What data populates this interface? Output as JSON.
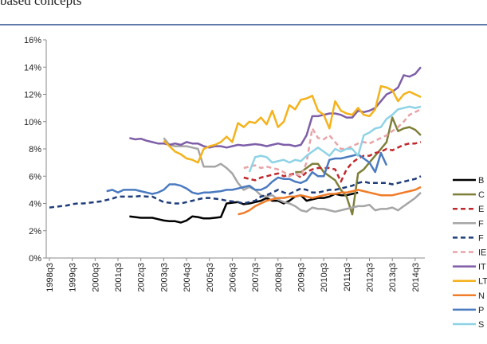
{
  "caption": "based concepts",
  "chart_data": {
    "type": "line",
    "categories": [
      "1998q3",
      null,
      null,
      null,
      "1999q3",
      null,
      null,
      null,
      "2000q3",
      null,
      null,
      null,
      "2001q3",
      null,
      null,
      null,
      "2002q3",
      null,
      null,
      null,
      "2003q3",
      null,
      null,
      null,
      "2004q3",
      null,
      null,
      null,
      "2005q3",
      null,
      null,
      null,
      "2006q3",
      null,
      null,
      null,
      "2007q3",
      null,
      null,
      null,
      "2008q3",
      null,
      null,
      null,
      "2009q3",
      null,
      null,
      null,
      "2010q3",
      null,
      null,
      null,
      "2011q3",
      null,
      null,
      null,
      "2012q3",
      null,
      null,
      null,
      "2013q3",
      null,
      null,
      null,
      "2014q3",
      null
    ],
    "ylim": [
      0,
      16
    ],
    "yticks": [
      {
        "value": 0,
        "label": "0%"
      },
      {
        "value": 2,
        "label": "2%"
      },
      {
        "value": 4,
        "label": "4%"
      },
      {
        "value": 6,
        "label": "6%"
      },
      {
        "value": 8,
        "label": "8%"
      },
      {
        "value": 10,
        "label": "10%"
      },
      {
        "value": 12,
        "label": "12%"
      },
      {
        "value": 14,
        "label": "14%"
      },
      {
        "value": 16,
        "label": "16%"
      }
    ],
    "legend": "right",
    "series": [
      {
        "name": "B",
        "color": "#000000",
        "dash": false,
        "values": [
          null,
          null,
          null,
          null,
          null,
          null,
          null,
          null,
          null,
          null,
          null,
          null,
          null,
          null,
          3.05,
          3.0,
          2.95,
          2.95,
          2.95,
          2.85,
          2.75,
          2.7,
          2.7,
          2.6,
          2.75,
          3.05,
          3.0,
          2.9,
          2.9,
          2.95,
          3.0,
          4.0,
          4.05,
          4.1,
          3.95,
          4.0,
          4.1,
          4.2,
          4.4,
          4.2,
          4.2,
          4.0,
          4.2,
          4.5,
          4.6,
          4.2,
          4.3,
          4.4,
          4.4,
          4.5,
          4.7,
          4.6,
          4.6,
          4.7,
          4.8,
          null,
          null,
          null,
          null,
          null,
          null,
          null,
          null,
          null,
          null,
          null
        ]
      },
      {
        "name": "C",
        "color": "#7f7f3a",
        "dash": false,
        "values": [
          null,
          null,
          null,
          null,
          null,
          null,
          null,
          null,
          null,
          null,
          null,
          null,
          null,
          null,
          null,
          null,
          null,
          null,
          null,
          null,
          null,
          null,
          null,
          null,
          null,
          null,
          null,
          null,
          null,
          null,
          null,
          null,
          null,
          null,
          null,
          null,
          null,
          null,
          null,
          null,
          null,
          null,
          null,
          6.3,
          6.3,
          6.6,
          6.9,
          6.9,
          6.3,
          6.0,
          5.7,
          5.0,
          4.5,
          3.2,
          6.2,
          6.5,
          7.0,
          7.5,
          8.0,
          8.5,
          10.3,
          9.3,
          9.5,
          9.6,
          9.4,
          9.0
        ]
      },
      {
        "name": "E",
        "color": "#c0282d",
        "dash": true,
        "values": [
          null,
          null,
          null,
          null,
          null,
          null,
          null,
          null,
          null,
          null,
          null,
          null,
          null,
          null,
          null,
          null,
          null,
          null,
          null,
          null,
          null,
          null,
          null,
          null,
          null,
          null,
          null,
          null,
          null,
          null,
          null,
          null,
          null,
          null,
          5.9,
          5.8,
          5.7,
          5.9,
          6.0,
          6.1,
          6.2,
          6.0,
          6.1,
          6.2,
          5.9,
          6.3,
          6.5,
          6.6,
          6.6,
          6.6,
          6.5,
          5.6,
          6.5,
          7.0,
          7.3,
          7.5,
          7.5,
          7.7,
          7.8,
          8.0,
          7.9,
          8.1,
          8.3,
          8.4,
          8.4,
          8.5
        ]
      },
      {
        "name": "F",
        "color": "#a6a6a6",
        "dash": false,
        "values": [
          null,
          null,
          null,
          null,
          null,
          null,
          null,
          null,
          null,
          null,
          null,
          null,
          null,
          null,
          null,
          null,
          null,
          null,
          null,
          null,
          8.8,
          8.3,
          8.2,
          8.2,
          8.2,
          8.1,
          8.0,
          6.7,
          6.7,
          6.7,
          6.9,
          6.6,
          6.2,
          5.5,
          5.0,
          5.2,
          5.0,
          4.6,
          4.5,
          4.6,
          4.3,
          4.1,
          4.0,
          3.8,
          3.5,
          3.4,
          3.7,
          3.6,
          3.6,
          3.5,
          3.4,
          3.5,
          3.6,
          3.7,
          3.8,
          3.8,
          3.9,
          3.5,
          3.6,
          3.6,
          3.7,
          3.5,
          3.8,
          4.1,
          4.4,
          4.8
        ]
      },
      {
        "name": "F",
        "color": "#1f3d7a",
        "dash": true,
        "values": [
          3.7,
          3.75,
          3.8,
          3.85,
          3.95,
          4.0,
          4.0,
          4.05,
          4.1,
          4.15,
          4.25,
          4.35,
          4.5,
          4.5,
          4.5,
          4.5,
          4.55,
          4.5,
          4.5,
          4.3,
          4.1,
          4.05,
          4.0,
          4.0,
          4.1,
          4.2,
          4.3,
          4.4,
          4.4,
          4.35,
          4.3,
          4.2,
          4.15,
          4.1,
          4.0,
          4.1,
          4.2,
          4.5,
          4.6,
          4.8,
          5.0,
          4.8,
          4.7,
          4.9,
          5.1,
          5.0,
          4.8,
          4.8,
          4.9,
          5.0,
          5.0,
          5.1,
          5.2,
          5.3,
          5.5,
          5.6,
          5.5,
          5.5,
          5.5,
          5.5,
          5.4,
          5.5,
          5.6,
          5.7,
          5.8,
          6.0
        ]
      },
      {
        "name": "IE",
        "color": "#e8a3a6",
        "dash": true,
        "values": [
          null,
          null,
          null,
          null,
          null,
          null,
          null,
          null,
          null,
          null,
          null,
          null,
          null,
          null,
          null,
          null,
          null,
          null,
          null,
          null,
          null,
          null,
          null,
          null,
          null,
          null,
          null,
          null,
          null,
          null,
          null,
          null,
          null,
          null,
          6.6,
          6.7,
          6.8,
          6.6,
          6.7,
          6.6,
          6.5,
          6.3,
          6.0,
          6.2,
          6.0,
          7.0,
          9.5,
          8.8,
          8.7,
          9.0,
          8.5,
          8.0,
          8.0,
          8.2,
          8.4,
          8.5,
          8.4,
          8.6,
          8.8,
          9.0,
          9.3,
          9.6,
          10.0,
          10.5,
          10.7,
          10.9
        ]
      },
      {
        "name": "IT",
        "color": "#7e5fa8",
        "dash": false,
        "values": [
          null,
          null,
          null,
          null,
          null,
          null,
          null,
          null,
          null,
          null,
          null,
          null,
          null,
          null,
          8.8,
          8.7,
          8.75,
          8.6,
          8.5,
          8.4,
          8.4,
          8.3,
          8.4,
          8.3,
          8.5,
          8.4,
          8.4,
          8.2,
          8.1,
          8.2,
          8.2,
          8.1,
          8.2,
          8.3,
          8.25,
          8.3,
          8.35,
          8.3,
          8.2,
          8.3,
          8.4,
          8.3,
          8.3,
          8.2,
          8.3,
          9.0,
          10.4,
          10.4,
          10.5,
          10.6,
          10.6,
          10.5,
          10.3,
          10.3,
          10.8,
          10.7,
          10.8,
          11.0,
          11.5,
          12.0,
          12.2,
          12.5,
          13.4,
          13.3,
          13.5,
          14.0
        ]
      },
      {
        "name": "LT",
        "color": "#f5b21a",
        "dash": false,
        "values": [
          null,
          null,
          null,
          null,
          null,
          null,
          null,
          null,
          null,
          null,
          null,
          null,
          null,
          null,
          null,
          null,
          null,
          null,
          null,
          null,
          8.6,
          8.2,
          7.8,
          7.6,
          7.3,
          7.2,
          7.0,
          8.0,
          8.2,
          8.3,
          8.5,
          8.9,
          8.5,
          9.9,
          9.6,
          10.0,
          9.9,
          10.3,
          9.8,
          10.8,
          9.6,
          10.0,
          11.2,
          10.9,
          11.6,
          11.7,
          11.9,
          10.8,
          10.5,
          9.5,
          11.5,
          10.8,
          10.6,
          10.5,
          11.0,
          10.5,
          10.4,
          10.9,
          12.6,
          12.5,
          12.3,
          11.5,
          12.0,
          12.2,
          12.0,
          11.8
        ]
      },
      {
        "name": "N",
        "color": "#f07d2a",
        "dash": false,
        "values": [
          null,
          null,
          null,
          null,
          null,
          null,
          null,
          null,
          null,
          null,
          null,
          null,
          null,
          null,
          null,
          null,
          null,
          null,
          null,
          null,
          null,
          null,
          null,
          null,
          null,
          null,
          null,
          null,
          null,
          null,
          null,
          null,
          null,
          3.2,
          3.3,
          3.5,
          3.8,
          4.0,
          4.2,
          4.3,
          4.4,
          4.4,
          4.5,
          4.5,
          4.6,
          4.5,
          4.4,
          4.5,
          4.6,
          4.7,
          4.7,
          4.8,
          4.8,
          4.9,
          5.0,
          4.9,
          4.8,
          4.7,
          4.6,
          4.6,
          4.6,
          4.7,
          4.8,
          4.9,
          5.0,
          5.2
        ]
      },
      {
        "name": "P",
        "color": "#4a7ac0",
        "dash": false,
        "values": [
          null,
          null,
          null,
          null,
          null,
          null,
          null,
          null,
          null,
          null,
          4.9,
          5.0,
          4.8,
          5.0,
          5.0,
          5.0,
          4.9,
          4.8,
          4.7,
          4.8,
          5.0,
          5.4,
          5.4,
          5.3,
          5.1,
          4.8,
          4.7,
          4.8,
          4.8,
          4.85,
          4.9,
          5.0,
          5.0,
          5.1,
          5.2,
          5.3,
          5.0,
          5.0,
          5.2,
          5.6,
          5.9,
          5.8,
          5.8,
          5.6,
          5.5,
          5.7,
          6.3,
          6.0,
          6.0,
          7.2,
          7.3,
          7.3,
          7.4,
          7.5,
          7.6,
          7.3,
          7.0,
          6.3,
          7.7,
          6.8,
          null,
          null,
          null,
          null,
          null,
          null
        ]
      },
      {
        "name": "S",
        "color": "#8fd3e6",
        "dash": false,
        "values": [
          null,
          null,
          null,
          null,
          null,
          null,
          null,
          null,
          null,
          null,
          null,
          null,
          null,
          null,
          null,
          null,
          null,
          null,
          null,
          null,
          null,
          null,
          null,
          null,
          null,
          null,
          null,
          null,
          null,
          null,
          null,
          null,
          null,
          null,
          null,
          6.3,
          7.4,
          7.5,
          7.4,
          7.0,
          7.1,
          7.2,
          7.0,
          7.2,
          7.1,
          7.5,
          7.8,
          8.1,
          7.8,
          7.5,
          8.0,
          7.8,
          8.0,
          8.0,
          7.5,
          9.0,
          9.2,
          9.5,
          9.6,
          10.2,
          10.5,
          10.9,
          11.0,
          11.1,
          11.0,
          11.1
        ]
      }
    ]
  }
}
